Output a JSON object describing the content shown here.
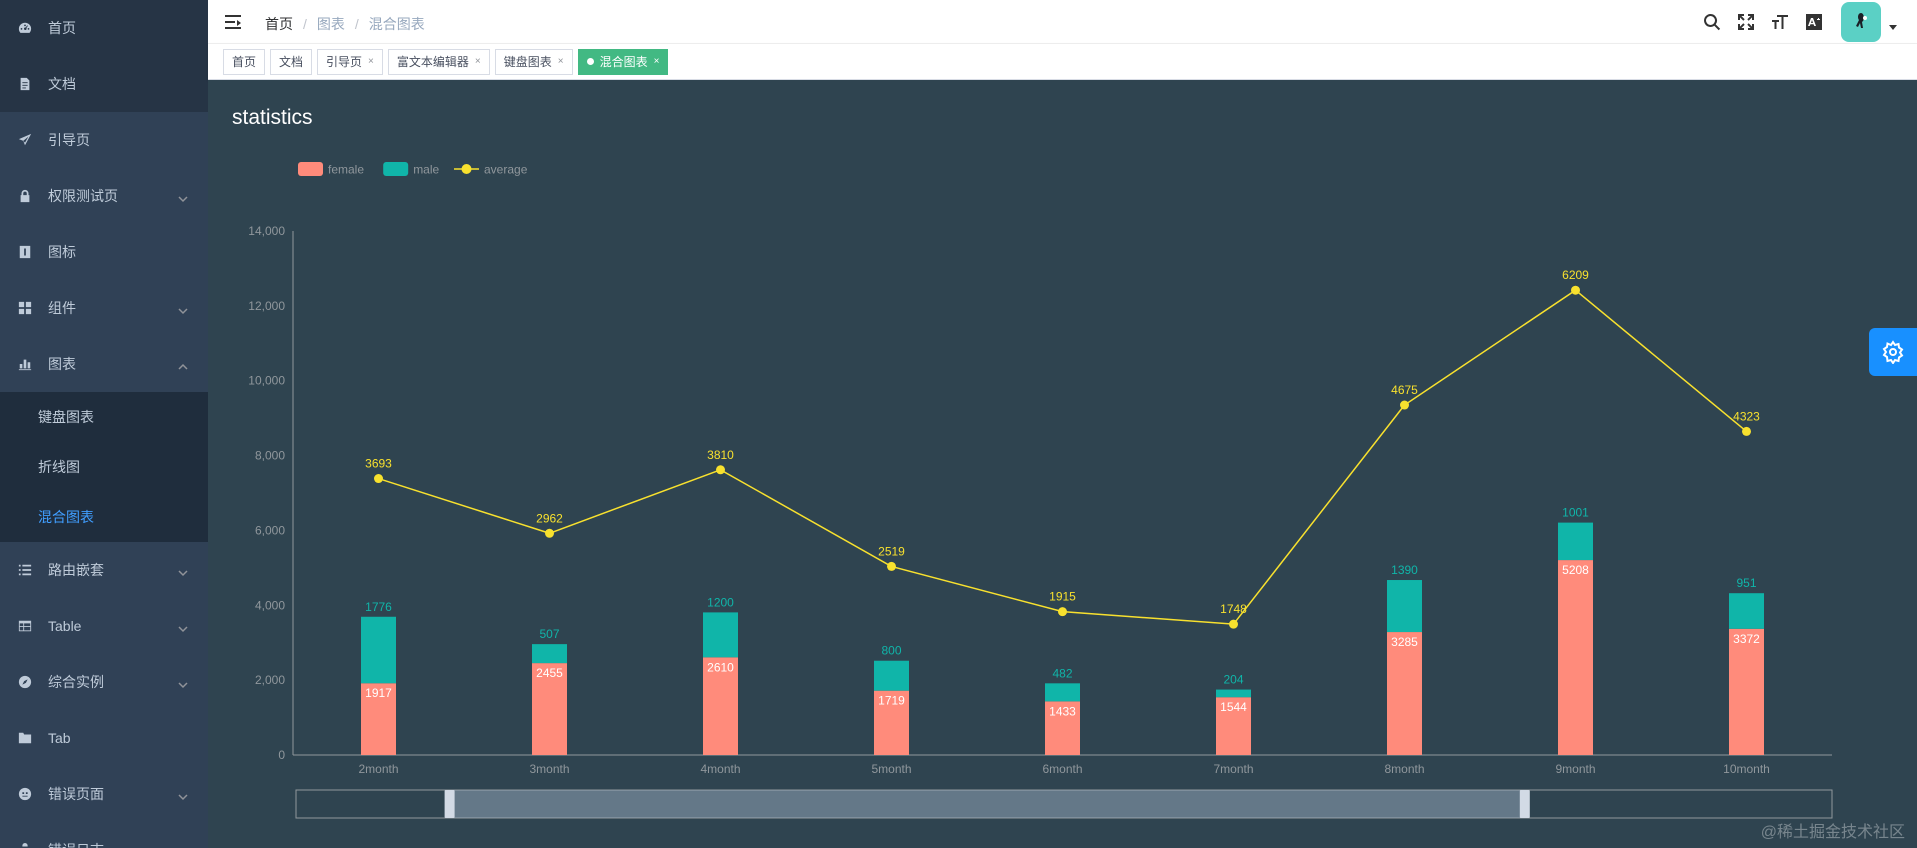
{
  "sidebar": {
    "items": [
      {
        "label": "首页"
      },
      {
        "label": "文档"
      },
      {
        "label": "引导页"
      },
      {
        "label": "权限测试页"
      },
      {
        "label": "图标"
      },
      {
        "label": "组件"
      },
      {
        "label": "图表"
      },
      {
        "label": "路由嵌套"
      },
      {
        "label": "Table"
      },
      {
        "label": "综合实例"
      },
      {
        "label": "Tab"
      },
      {
        "label": "错误页面"
      },
      {
        "label": "错误日志"
      }
    ],
    "chart_sub": [
      {
        "label": "键盘图表"
      },
      {
        "label": "折线图"
      },
      {
        "label": "混合图表"
      }
    ]
  },
  "header": {
    "breadcrumb": [
      "首页",
      "图表",
      "混合图表"
    ]
  },
  "tags": [
    {
      "label": "首页"
    },
    {
      "label": "文档"
    },
    {
      "label": "引导页"
    },
    {
      "label": "富文本编辑器"
    },
    {
      "label": "键盘图表"
    },
    {
      "label": "混合图表"
    }
  ],
  "watermark": "@稀土掘金技术社区",
  "icons": {
    "hamburger": "hamburger-icon",
    "search": "search-icon",
    "fullscreen": "fullscreen-icon",
    "size": "font-size-icon",
    "language": "language-icon",
    "settings": "gear-icon"
  },
  "colors": {
    "female": "#ff8b7b",
    "male": "#10b5a9",
    "average": "#f8e12e",
    "sidebar_bg": "#304156",
    "active_tag": "#42b983",
    "active_menu": "#409eff"
  },
  "chart_data": {
    "type": "bar",
    "title": "statistics",
    "categories": [
      "2month",
      "3month",
      "4month",
      "5month",
      "6month",
      "7month",
      "8month",
      "9month",
      "10month"
    ],
    "series": [
      {
        "name": "female",
        "type": "bar",
        "stack": true,
        "values": [
          1917,
          2455,
          2610,
          1719,
          1433,
          1544,
          3285,
          5208,
          3372
        ]
      },
      {
        "name": "male",
        "type": "bar",
        "stack": true,
        "values": [
          1776,
          507,
          1200,
          800,
          482,
          204,
          1390,
          1001,
          951
        ]
      },
      {
        "name": "average",
        "type": "line",
        "values": [
          3693,
          2962,
          3810,
          2519,
          1915,
          1748,
          4675,
          6209,
          4323
        ]
      }
    ],
    "ylim": [
      0,
      14000
    ],
    "yticks": [
      "0",
      "2,000",
      "4,000",
      "6,000",
      "8,000",
      "10,000",
      "12,000",
      "14,000"
    ],
    "legend": "top-left",
    "grid": false,
    "datazoom": {
      "start": 0.1,
      "end": 0.8
    }
  }
}
